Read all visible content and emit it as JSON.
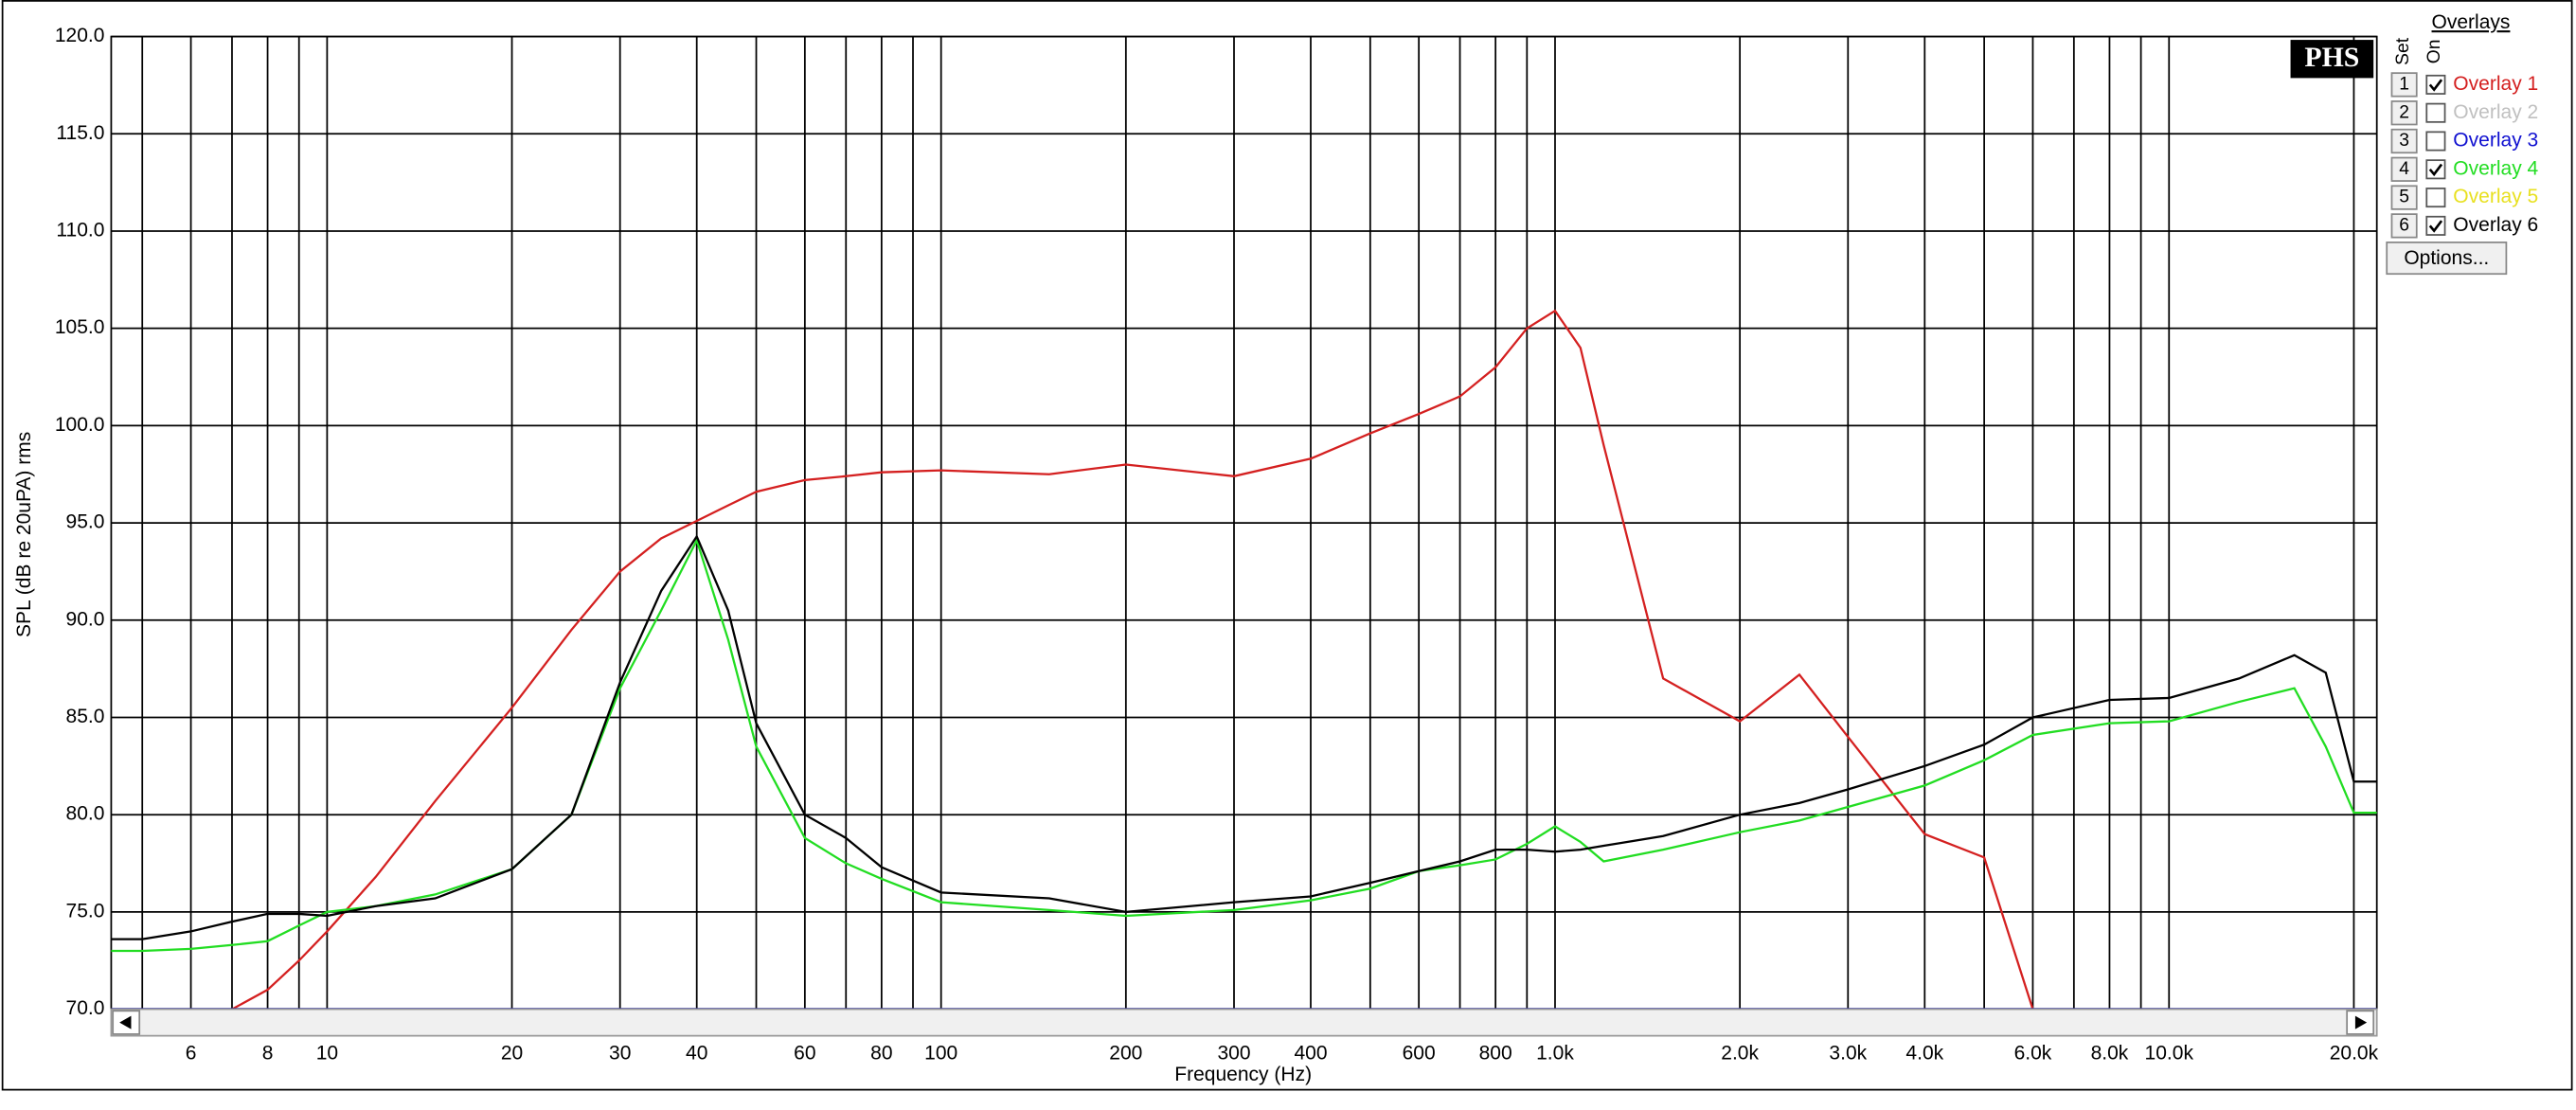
{
  "chart_data": {
    "type": "line",
    "x_label": "Frequency (Hz)",
    "y_label": "SPL (dB re 20uPA) rms",
    "logo": "PHS",
    "legend_title": "Overlays",
    "legend_set_header": "Set",
    "legend_on_header": "On",
    "options_button": "Options...",
    "xscale": "log",
    "grid": true,
    "xlim": [
      4.45,
      21800
    ],
    "ylim": [
      70,
      120
    ],
    "yticks": [
      {
        "value": 70,
        "label": "70.0"
      },
      {
        "value": 75,
        "label": "75.0"
      },
      {
        "value": 80,
        "label": "80.0"
      },
      {
        "value": 85,
        "label": "85.0"
      },
      {
        "value": 90,
        "label": "90.0"
      },
      {
        "value": 95,
        "label": "95.0"
      },
      {
        "value": 100,
        "label": "100.0"
      },
      {
        "value": 105,
        "label": "105.0"
      },
      {
        "value": 110,
        "label": "110.0"
      },
      {
        "value": 115,
        "label": "115.0"
      },
      {
        "value": 120,
        "label": "120.0"
      }
    ],
    "xticks": [
      6,
      8,
      10,
      20,
      30,
      40,
      60,
      80,
      100,
      200,
      300,
      400,
      600,
      800,
      {
        "value": 1000,
        "label": "1.0k"
      },
      {
        "value": 2000,
        "label": "2.0k"
      },
      {
        "value": 3000,
        "label": "3.0k"
      },
      {
        "value": 4000,
        "label": "4.0k"
      },
      {
        "value": 6000,
        "label": "6.0k"
      },
      {
        "value": 8000,
        "label": "8.0k"
      },
      {
        "value": 10000,
        "label": "10.0k"
      },
      {
        "value": 20000,
        "label": "20.0k"
      }
    ],
    "xminor": [
      5,
      7,
      9,
      50,
      70,
      90,
      500,
      700,
      900,
      5000,
      7000,
      9000
    ],
    "x": [
      4.45,
      5,
      6,
      7,
      8,
      9,
      10,
      12,
      15,
      20,
      25,
      30,
      35,
      40,
      45,
      50,
      60,
      70,
      80,
      100,
      150,
      200,
      300,
      400,
      500,
      600,
      700,
      800,
      900,
      1000,
      1100,
      1200,
      1500,
      2000,
      2500,
      3000,
      4000,
      5000,
      6000,
      8000,
      10000,
      13000,
      16000,
      18000,
      20000,
      21800
    ],
    "series": [
      {
        "set": "1",
        "name": "Overlay 1",
        "color": "#d42020",
        "on": true,
        "values": [
          70,
          70,
          70,
          70,
          71.0,
          72.5,
          74.0,
          76.8,
          80.7,
          85.5,
          89.5,
          92.5,
          94.2,
          95.1,
          95.9,
          96.6,
          97.2,
          97.4,
          97.6,
          97.7,
          97.5,
          98.0,
          97.4,
          98.3,
          99.6,
          100.6,
          101.5,
          103.0,
          105.0,
          105.9,
          104.0,
          99.0,
          87.0,
          84.8,
          87.2,
          84.0,
          79.0,
          77.8,
          70,
          70,
          70,
          70,
          70,
          70,
          70,
          70
        ]
      },
      {
        "set": "2",
        "name": "Overlay 2",
        "color": "#c0c0c0",
        "on": false
      },
      {
        "set": "3",
        "name": "Overlay 3",
        "color": "#1010d0",
        "on": false
      },
      {
        "set": "4",
        "name": "Overlay 4",
        "color": "#22dd22",
        "on": true,
        "values": [
          73.0,
          73.0,
          73.1,
          73.3,
          73.5,
          74.3,
          75.0,
          75.3,
          75.9,
          77.2,
          80.0,
          86.5,
          90.5,
          94.1,
          89.0,
          83.5,
          78.8,
          77.5,
          76.7,
          75.5,
          75.1,
          74.8,
          75.1,
          75.6,
          76.2,
          77.1,
          77.4,
          77.7,
          78.5,
          79.4,
          78.6,
          77.6,
          78.2,
          79.1,
          79.7,
          80.4,
          81.5,
          82.8,
          84.1,
          84.7,
          84.8,
          85.8,
          86.5,
          83.5,
          80.1,
          80.1
        ]
      },
      {
        "set": "5",
        "name": "Overlay 5",
        "color": "#e8e020",
        "on": false
      },
      {
        "set": "6",
        "name": "Overlay 6",
        "color": "#000000",
        "on": true,
        "values": [
          73.6,
          73.6,
          74.0,
          74.5,
          74.9,
          74.9,
          74.8,
          75.3,
          75.7,
          77.2,
          80.0,
          86.8,
          91.5,
          94.3,
          90.5,
          84.7,
          80.0,
          78.8,
          77.3,
          76.0,
          75.7,
          75.0,
          75.5,
          75.8,
          76.5,
          77.1,
          77.6,
          78.2,
          78.2,
          78.1,
          78.2,
          78.4,
          78.9,
          80.0,
          80.6,
          81.3,
          82.5,
          83.6,
          85.0,
          85.9,
          86.0,
          87.0,
          88.2,
          87.3,
          81.7,
          81.7
        ]
      }
    ]
  }
}
